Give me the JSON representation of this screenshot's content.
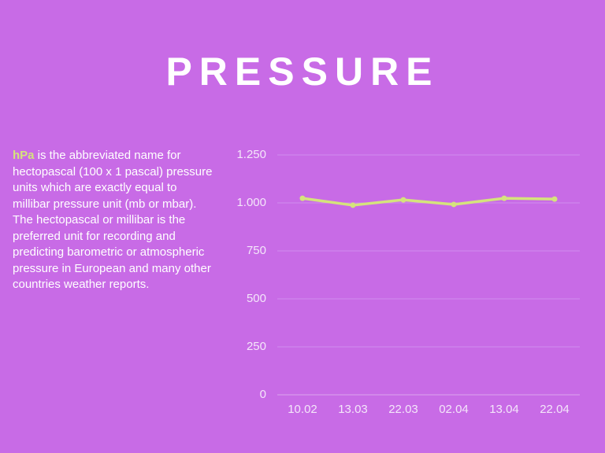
{
  "title": "PRESSURE",
  "description": {
    "highlight": "hPa",
    "text": " is the abbreviated name for hectopascal (100 x 1 pascal) pressure units which are exactly equal to millibar pressure unit (mb or mbar). The hectopascal or millibar is the preferred unit for recording and predicting barometric or atmospheric pressure in European and many other countries weather reports."
  },
  "chart_data": {
    "type": "line",
    "categories": [
      "10.02",
      "13.03",
      "22.03",
      "02.04",
      "13.04",
      "22.04"
    ],
    "values": [
      1024,
      988,
      1016,
      992,
      1024,
      1020
    ],
    "color": "#d5e37c",
    "ylim": [
      0,
      1250
    ],
    "yticks": [
      0,
      250,
      500,
      750,
      {
        "value": 1000,
        "label": "1.000"
      },
      {
        "value": 1250,
        "label": "1.250"
      }
    ],
    "grid": true
  }
}
